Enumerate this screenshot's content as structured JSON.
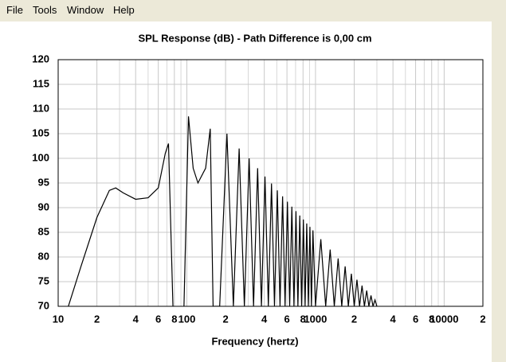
{
  "menu": [
    "File",
    "Tools",
    "Window",
    "Help"
  ],
  "chart_data": {
    "type": "line",
    "title": "SPL Response (dB) - Path Difference is 0,00 cm",
    "x_label": "Frequency (hertz)",
    "x_scale": "log",
    "xlim": [
      10,
      20000
    ],
    "xticks": [
      10,
      {
        "value": 20,
        "label": "2"
      },
      {
        "value": 40,
        "label": "4"
      },
      {
        "value": 60,
        "label": "6"
      },
      {
        "value": 80,
        "label": "8"
      },
      100,
      {
        "value": 200,
        "label": "2"
      },
      {
        "value": 400,
        "label": "4"
      },
      {
        "value": 600,
        "label": "6"
      },
      {
        "value": 800,
        "label": "8"
      },
      1000,
      {
        "value": 2000,
        "label": "2"
      },
      {
        "value": 4000,
        "label": "4"
      },
      {
        "value": 6000,
        "label": "6"
      },
      {
        "value": 8000,
        "label": "8"
      },
      10000,
      {
        "value": 20000,
        "label": "2"
      }
    ],
    "xminor": [
      30,
      50,
      70,
      90,
      300,
      500,
      700,
      900,
      3000,
      5000,
      7000,
      9000
    ],
    "ylim": [
      70,
      120
    ],
    "yticks": [
      70,
      75,
      80,
      85,
      90,
      95,
      100,
      105,
      110,
      115,
      120
    ],
    "grid": true,
    "color": "#000000",
    "x": [
      12,
      15,
      20,
      25,
      28,
      32,
      40,
      50,
      60,
      68,
      72,
      78,
      85,
      95,
      103,
      112,
      122,
      140,
      152,
      160,
      180,
      205,
      230,
      255,
      280,
      305,
      330,
      355,
      380,
      405,
      430,
      455,
      480,
      505,
      530,
      555,
      580,
      605,
      630,
      655,
      680,
      705,
      730,
      755,
      780,
      805,
      830,
      855,
      880,
      905,
      930,
      955,
      1000,
      1100,
      1200,
      1300,
      1400,
      1500,
      1600,
      1700,
      1800,
      1900,
      2000,
      2100,
      2200,
      2300,
      2400,
      2500,
      2600,
      2700,
      2800,
      2900,
      3000
    ],
    "values": [
      70,
      78,
      88,
      93.5,
      94,
      93,
      91.7,
      92,
      94,
      101,
      103,
      70,
      null,
      70,
      108.5,
      98,
      95,
      98,
      106,
      70,
      70,
      105,
      70,
      102,
      70,
      100,
      70,
      98,
      70,
      96.3,
      70,
      94.9,
      70,
      93.5,
      70,
      92.3,
      70,
      91.2,
      70,
      90.2,
      70,
      89.3,
      70,
      88.4,
      70,
      87.6,
      70,
      86.8,
      70,
      86.1,
      70,
      85.4,
      70,
      83.6,
      70,
      81.5,
      70,
      79.7,
      70,
      78.1,
      70,
      76.6,
      70,
      75.4,
      70,
      74.2,
      70,
      73.2,
      70,
      72.2,
      70,
      71.3,
      70
    ]
  }
}
